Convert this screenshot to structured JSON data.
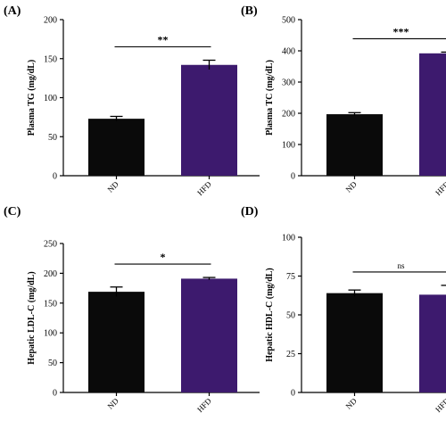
{
  "colors": {
    "ND": "#0a0a0a",
    "HFD": "#3d1a6e",
    "axis": "#000000"
  },
  "chart_data": [
    {
      "type": "bar",
      "panel": "(A)",
      "ylabel": "Plasma TG (mg/dL)",
      "categories": [
        "ND",
        "HFD"
      ],
      "values": [
        73,
        142
      ],
      "errors": [
        3,
        6
      ],
      "ylim": [
        0,
        200
      ],
      "yticks": [
        0,
        50,
        100,
        150,
        200
      ],
      "significance": "**"
    },
    {
      "type": "bar",
      "panel": "(B)",
      "ylabel": "Plasma TC (mg/dL)",
      "categories": [
        "ND",
        "HFD"
      ],
      "values": [
        197,
        392
      ],
      "errors": [
        5,
        4
      ],
      "ylim": [
        0,
        500
      ],
      "yticks": [
        0,
        100,
        200,
        300,
        400,
        500
      ],
      "significance": "***"
    },
    {
      "type": "bar",
      "panel": "(C)",
      "ylabel": "Hepatic LDL-C (mg/dL)",
      "categories": [
        "ND",
        "HFD"
      ],
      "values": [
        169,
        191
      ],
      "errors": [
        8,
        2
      ],
      "ylim": [
        0,
        250
      ],
      "yticks": [
        0,
        50,
        100,
        150,
        200,
        250
      ],
      "significance": "*"
    },
    {
      "type": "bar",
      "panel": "(D)",
      "ylabel": "Hepatic HDL-C (mg/dL)",
      "categories": [
        "ND",
        "HFD"
      ],
      "values": [
        64,
        63
      ],
      "errors": [
        2,
        6
      ],
      "ylim": [
        0,
        100
      ],
      "yticks": [
        0,
        25,
        50,
        75,
        100
      ],
      "significance": "ns"
    }
  ]
}
